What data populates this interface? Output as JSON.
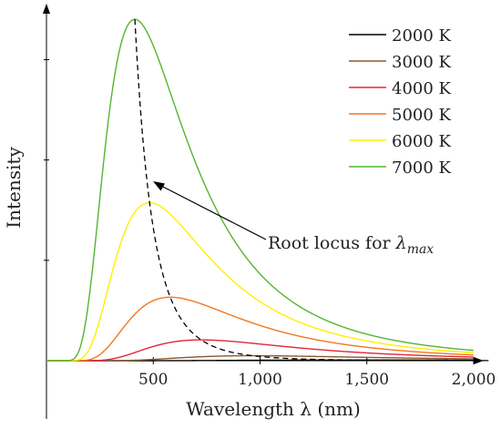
{
  "chart_data": {
    "type": "line",
    "xlabel": "Wavelength λ (nm)",
    "ylabel": "Intensity",
    "x_ticks": [
      500,
      1000,
      1500,
      2000
    ],
    "x_tick_labels": [
      "500",
      "1,000",
      "1,500",
      "2,000"
    ],
    "xlim": [
      0,
      2000
    ],
    "ylim": [
      0,
      1.03
    ],
    "grid": false,
    "legend_position": "top-right",
    "series": [
      {
        "name": "2000 K",
        "temperature": 2000,
        "color": "#000000",
        "x": [
          500,
          1000,
          1449,
          2000
        ],
        "y": [
          0.0,
          0.0008,
          0.0016,
          0.0015
        ]
      },
      {
        "name": "3000 K",
        "temperature": 3000,
        "color": "#8b5a2b",
        "x": [
          500,
          966,
          1500,
          2000
        ],
        "y": [
          0.0008,
          0.012,
          0.0087,
          0.0051
        ]
      },
      {
        "name": "4000 K",
        "temperature": 4000,
        "color": "#e0283c",
        "x": [
          400,
          724,
          1000,
          1500,
          2000
        ],
        "y": [
          0.012,
          0.065,
          0.053,
          0.027,
          0.015
        ]
      },
      {
        "name": "5000 K",
        "temperature": 5000,
        "color": "#f07820",
        "x": [
          300,
          580,
          1000,
          1500,
          2000
        ],
        "y": [
          0.044,
          0.19,
          0.115,
          0.05,
          0.025
        ]
      },
      {
        "name": "6000 K",
        "temperature": 6000,
        "color": "#ffef00",
        "x": [
          250,
          483,
          1000,
          1500,
          2000
        ],
        "y": [
          0.12,
          0.47,
          0.19,
          0.075,
          0.037
        ]
      },
      {
        "name": "7000 K",
        "temperature": 7000,
        "color": "#55b530",
        "x": [
          200,
          414,
          1000,
          1500,
          2000
        ],
        "y": [
          0.2,
          1.0,
          0.28,
          0.1,
          0.05
        ]
      }
    ],
    "root_locus": {
      "label_prefix": "Root locus for ",
      "label_symbol": "λ",
      "label_subscript": "max",
      "style": "dashed",
      "color": "#000000",
      "arrow_target": [
        483,
        0.47
      ]
    }
  }
}
